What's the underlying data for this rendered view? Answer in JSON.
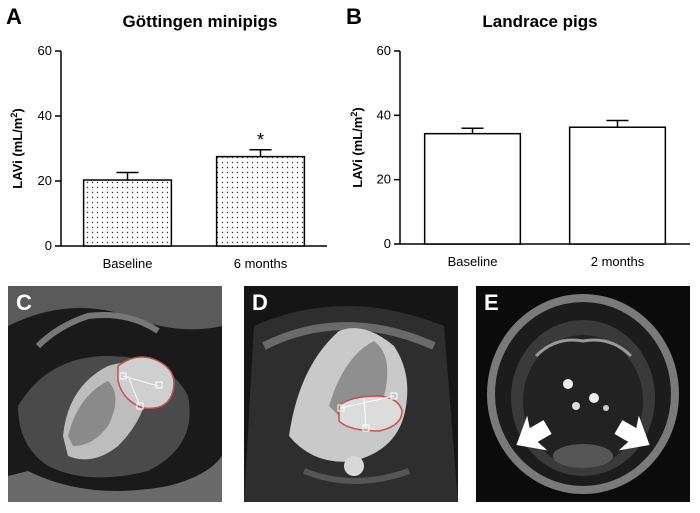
{
  "panels": {
    "a": "A",
    "b": "B",
    "c": "C",
    "d": "D",
    "e": "E"
  },
  "chart_data": [
    {
      "type": "bar",
      "title": "Göttingen minipigs",
      "categories": [
        "Baseline",
        "6 months"
      ],
      "values": [
        20.3,
        27.5
      ],
      "errors": [
        2.3,
        2.1
      ],
      "annotations": [
        "",
        "*"
      ],
      "ylabel_main": "LAVi (mL/m",
      "ylabel_sup": "2",
      "ylabel_end": ")",
      "ylim": [
        0,
        60
      ],
      "yticks": [
        "0",
        "20",
        "40",
        "60"
      ],
      "bar_fill": "dotted",
      "grid": false
    },
    {
      "type": "bar",
      "title": "Landrace pigs",
      "categories": [
        "Baseline",
        "2 months"
      ],
      "values": [
        34.3,
        36.3
      ],
      "errors": [
        1.7,
        2.1
      ],
      "annotations": [
        "",
        ""
      ],
      "ylabel_main": "LAVi (mL/m",
      "ylabel_sup": "2",
      "ylabel_end": ")",
      "ylim": [
        0,
        60
      ],
      "yticks": [
        "0",
        "20",
        "40",
        "60"
      ],
      "bar_fill": "white",
      "grid": false
    }
  ],
  "colors": {
    "contour": "#c4504f",
    "mri_background": "#0b0b0b",
    "arrow": "#ffffff"
  },
  "icons": {
    "arrow_left": "arrow-right-pointing-icon",
    "arrow_right": "arrow-left-pointing-icon"
  }
}
